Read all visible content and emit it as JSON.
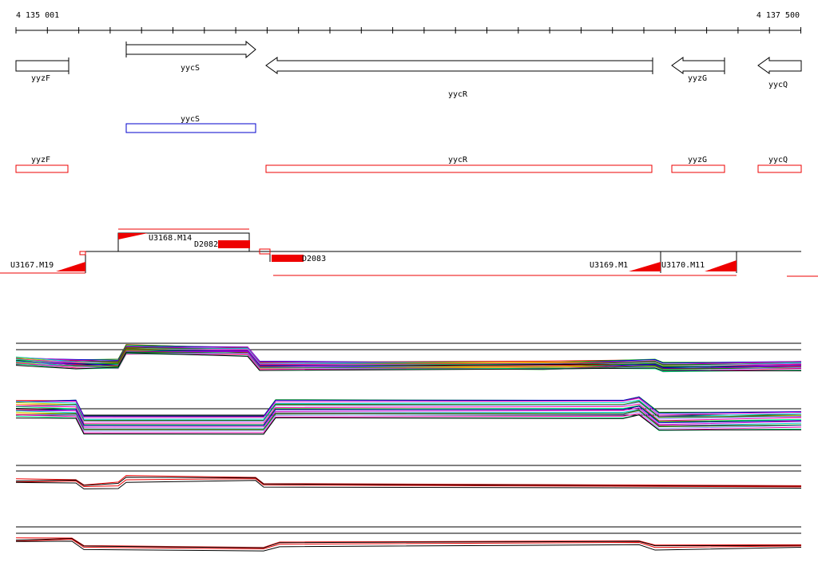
{
  "ruler": {
    "start": "4 135 001",
    "end": "4 137 500"
  },
  "genes": [
    {
      "label": "yyzF"
    },
    {
      "label": "yycS"
    },
    {
      "label": "yycR"
    },
    {
      "label": "yyzG"
    },
    {
      "label": "yycQ"
    }
  ],
  "cds": [
    {
      "label": "yycS"
    }
  ],
  "orfs": [
    {
      "label": "yyzF"
    },
    {
      "label": "yycR"
    },
    {
      "label": "yyzG"
    },
    {
      "label": "yycQ"
    }
  ],
  "segments": [
    {
      "label": "U3168.M14"
    },
    {
      "label": "D2082"
    },
    {
      "label": "U3167.M19"
    },
    {
      "label": "D2083"
    },
    {
      "label": "U3169.M1"
    },
    {
      "label": "U3170.M11"
    }
  ]
}
